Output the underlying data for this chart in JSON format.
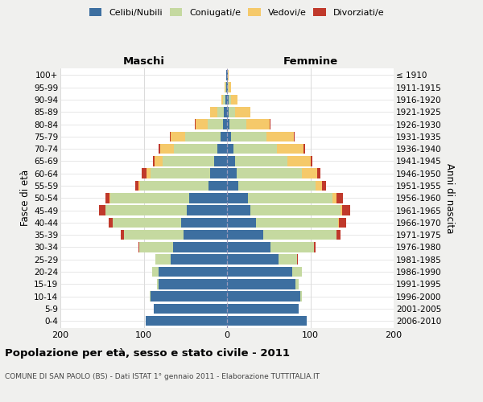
{
  "age_groups": [
    "0-4",
    "5-9",
    "10-14",
    "15-19",
    "20-24",
    "25-29",
    "30-34",
    "35-39",
    "40-44",
    "45-49",
    "50-54",
    "55-59",
    "60-64",
    "65-69",
    "70-74",
    "75-79",
    "80-84",
    "85-89",
    "90-94",
    "95-99",
    "100+"
  ],
  "birth_years": [
    "2006-2010",
    "2001-2005",
    "1996-2000",
    "1991-1995",
    "1986-1990",
    "1981-1985",
    "1976-1980",
    "1971-1975",
    "1966-1970",
    "1961-1965",
    "1956-1960",
    "1951-1955",
    "1946-1950",
    "1941-1945",
    "1936-1940",
    "1931-1935",
    "1926-1930",
    "1921-1925",
    "1916-1920",
    "1911-1915",
    "≤ 1910"
  ],
  "colors": {
    "celibi": "#3d6fa0",
    "coniugati": "#c5d9a0",
    "vedovi": "#f5c96a",
    "divorziati": "#c0392b"
  },
  "m_cel": [
    98,
    88,
    92,
    82,
    82,
    68,
    65,
    52,
    55,
    48,
    45,
    22,
    20,
    15,
    12,
    8,
    5,
    4,
    2,
    1,
    1
  ],
  "m_con": [
    0,
    0,
    1,
    2,
    8,
    18,
    40,
    72,
    82,
    98,
    95,
    82,
    72,
    62,
    52,
    42,
    18,
    8,
    3,
    1,
    0
  ],
  "m_ved": [
    0,
    0,
    0,
    0,
    0,
    0,
    0,
    0,
    0,
    0,
    1,
    2,
    5,
    10,
    16,
    18,
    15,
    8,
    2,
    1,
    0
  ],
  "m_div": [
    0,
    0,
    0,
    0,
    0,
    0,
    1,
    4,
    5,
    8,
    5,
    4,
    5,
    2,
    2,
    1,
    1,
    0,
    0,
    0,
    0
  ],
  "f_cel": [
    96,
    86,
    88,
    82,
    78,
    62,
    52,
    43,
    35,
    28,
    25,
    14,
    12,
    10,
    8,
    5,
    3,
    2,
    2,
    1,
    1
  ],
  "f_con": [
    0,
    0,
    2,
    4,
    12,
    22,
    52,
    88,
    98,
    108,
    102,
    92,
    78,
    62,
    52,
    42,
    20,
    8,
    3,
    1,
    0
  ],
  "f_ved": [
    0,
    0,
    0,
    0,
    0,
    0,
    0,
    0,
    1,
    2,
    4,
    8,
    18,
    28,
    32,
    33,
    28,
    18,
    8,
    3,
    1
  ],
  "f_div": [
    0,
    0,
    0,
    0,
    0,
    1,
    2,
    5,
    9,
    10,
    8,
    5,
    4,
    2,
    2,
    1,
    1,
    0,
    0,
    0,
    0
  ],
  "xlim": 200,
  "title": "Popolazione per età, sesso e stato civile - 2011",
  "subtitle": "COMUNE DI SAN PAOLO (BS) - Dati ISTAT 1° gennaio 2011 - Elaborazione TUTTITALIA.IT",
  "xlabel_left": "Maschi",
  "xlabel_right": "Femmine",
  "ylabel_left": "Fasce di età",
  "ylabel_right": "Anni di nascita",
  "legend_labels": [
    "Celibi/Nubili",
    "Coniugati/e",
    "Vedovi/e",
    "Divorziati/e"
  ],
  "bg_color": "#f0f0ee",
  "plot_bg": "#ffffff"
}
